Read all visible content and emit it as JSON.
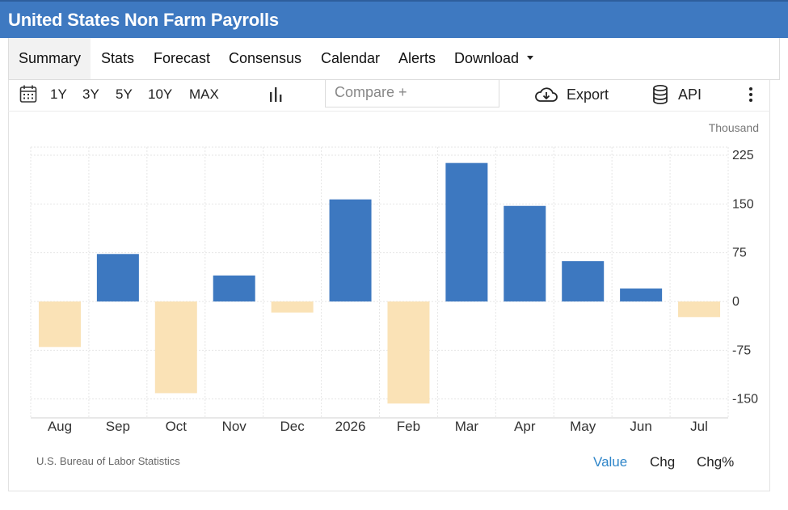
{
  "header": {
    "title": "United States Non Farm Payrolls"
  },
  "tabs": [
    {
      "label": "Summary",
      "active": true
    },
    {
      "label": "Stats"
    },
    {
      "label": "Forecast"
    },
    {
      "label": "Consensus"
    },
    {
      "label": "Calendar"
    },
    {
      "label": "Alerts"
    },
    {
      "label": "Download"
    }
  ],
  "toolbar": {
    "ranges": [
      "1Y",
      "3Y",
      "5Y",
      "10Y",
      "MAX"
    ],
    "compare_placeholder": "Compare +",
    "export_label": "Export",
    "api_label": "API",
    "icons": [
      "calendar-icon",
      "bar-chart-icon",
      "cloud-download-icon",
      "database-icon",
      "more-vertical-icon"
    ]
  },
  "chart_data": {
    "type": "bar",
    "unit": "Thousand",
    "categories": [
      "Aug",
      "Sep",
      "Oct",
      "Nov",
      "Dec",
      "2026",
      "Feb",
      "Mar",
      "Apr",
      "May",
      "Jun",
      "Jul"
    ],
    "values": [
      -70,
      73,
      -141,
      40,
      -17,
      157,
      -157,
      213,
      147,
      62,
      20,
      -24
    ],
    "ylim": [
      -170,
      240
    ],
    "yticks": [
      225,
      150,
      75,
      0,
      -75,
      -150
    ],
    "ytick_labels": [
      "225",
      "150",
      "75",
      "0",
      "-75",
      "-150"
    ],
    "grid": true,
    "colors": {
      "positive": "#3d78c0",
      "negative": "#fae2b6",
      "grid": "#e6e6e6"
    }
  },
  "footer": {
    "source": "U.S. Bureau of Labor Statistics",
    "modes": [
      {
        "label": "Value",
        "active": true
      },
      {
        "label": "Chg"
      },
      {
        "label": "Chg%"
      }
    ],
    "active_color": "#2f86c9"
  }
}
